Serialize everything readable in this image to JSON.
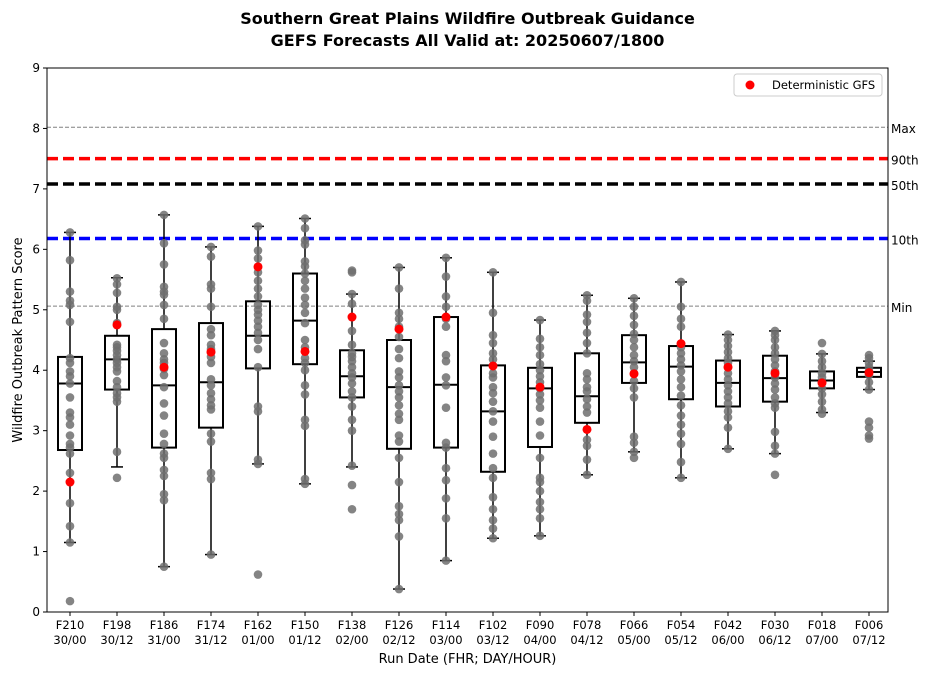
{
  "chart_data": {
    "type": "box",
    "title_lines": [
      "Southern Great Plains Wildfire Outbreak Guidance",
      "GEFS Forecasts All Valid at: 20250607/1800"
    ],
    "xlabel": "Run Date (FHR; DAY/HOUR)",
    "ylabel": "Wildfire Outbreak Pattern Score",
    "ylim": [
      0,
      9
    ],
    "yticks": [
      "0",
      "1",
      "2",
      "3",
      "4",
      "5",
      "6",
      "7",
      "8",
      "9"
    ],
    "legend": {
      "entries": [
        "Deterministic GFS"
      ],
      "placement": "top-right"
    },
    "grid": false,
    "reference_lines": [
      {
        "label": "Max",
        "value": 8.02,
        "color": "#808080",
        "style": "dashed-thin"
      },
      {
        "label": "90th",
        "value": 7.5,
        "color": "#ff0000",
        "style": "dashed-thick"
      },
      {
        "label": "50th",
        "value": 7.08,
        "color": "#000000",
        "style": "dashed-thick"
      },
      {
        "label": "10th",
        "value": 6.18,
        "color": "#0000ff",
        "style": "dashed-thick"
      },
      {
        "label": "Min",
        "value": 5.06,
        "color": "#808080",
        "style": "dashed-thin"
      }
    ],
    "categories": [
      {
        "fhr": "F210",
        "time": "30/00",
        "min": 1.15,
        "q1": 2.68,
        "median": 3.78,
        "q3": 4.22,
        "max": 6.28,
        "det": 2.15,
        "members": [
          0.18,
          1.15,
          1.42,
          1.8,
          2.3,
          2.62,
          2.72,
          2.78,
          2.92,
          3.1,
          3.22,
          3.3,
          3.55,
          3.78,
          3.9,
          3.98,
          4.12,
          4.2,
          4.8,
          5.08,
          5.15,
          5.3,
          5.82,
          6.28
        ]
      },
      {
        "fhr": "F198",
        "time": "30/12",
        "min": 2.4,
        "q1": 3.68,
        "median": 4.18,
        "q3": 4.57,
        "max": 5.53,
        "det": 4.75,
        "members": [
          2.22,
          2.65,
          3.48,
          3.55,
          3.62,
          3.72,
          3.82,
          3.98,
          4.05,
          4.12,
          4.18,
          4.25,
          4.32,
          4.38,
          4.42,
          4.78,
          5.0,
          5.05,
          5.28,
          5.42,
          5.52
        ]
      },
      {
        "fhr": "F186",
        "time": "31/00",
        "min": 0.75,
        "q1": 2.72,
        "median": 3.75,
        "q3": 4.68,
        "max": 6.57,
        "det": 4.05,
        "members": [
          0.75,
          1.85,
          1.95,
          2.25,
          2.35,
          2.55,
          2.62,
          2.78,
          2.95,
          3.25,
          3.45,
          3.72,
          3.92,
          4.02,
          4.12,
          4.18,
          4.28,
          4.45,
          4.85,
          5.08,
          5.25,
          5.3,
          5.38,
          5.75,
          6.1,
          6.57
        ]
      },
      {
        "fhr": "F174",
        "time": "31/12",
        "min": 0.95,
        "q1": 3.05,
        "median": 3.8,
        "q3": 4.78,
        "max": 6.04,
        "det": 4.3,
        "members": [
          0.95,
          2.2,
          2.3,
          2.82,
          2.95,
          3.35,
          3.42,
          3.52,
          3.62,
          3.75,
          3.85,
          4.12,
          4.22,
          4.35,
          4.42,
          4.58,
          4.68,
          5.05,
          5.35,
          5.42,
          5.88,
          6.04
        ]
      },
      {
        "fhr": "F162",
        "time": "01/00",
        "min": 2.45,
        "q1": 4.03,
        "median": 4.57,
        "q3": 5.14,
        "max": 6.38,
        "det": 5.71,
        "members": [
          0.62,
          2.45,
          2.52,
          3.32,
          3.4,
          4.05,
          4.35,
          4.5,
          4.62,
          4.72,
          4.82,
          4.92,
          5.0,
          5.08,
          5.22,
          5.35,
          5.48,
          5.62,
          5.85,
          5.98,
          6.38
        ]
      },
      {
        "fhr": "F150",
        "time": "01/12",
        "min": 2.12,
        "q1": 4.1,
        "median": 4.82,
        "q3": 5.6,
        "max": 6.51,
        "det": 4.31,
        "members": [
          2.12,
          2.2,
          3.08,
          3.18,
          3.6,
          3.75,
          4.0,
          4.12,
          4.2,
          4.38,
          4.5,
          4.78,
          4.95,
          5.08,
          5.2,
          5.35,
          5.48,
          5.6,
          5.72,
          5.8,
          6.08,
          6.15,
          6.35,
          6.51
        ]
      },
      {
        "fhr": "F138",
        "time": "02/00",
        "min": 2.4,
        "q1": 3.55,
        "median": 3.9,
        "q3": 4.33,
        "max": 5.26,
        "det": 4.88,
        "members": [
          1.7,
          2.1,
          2.42,
          3.0,
          3.18,
          3.4,
          3.55,
          3.65,
          3.78,
          3.88,
          3.95,
          4.05,
          4.15,
          4.22,
          4.28,
          4.42,
          4.65,
          5.1,
          5.26,
          5.62,
          5.65
        ]
      },
      {
        "fhr": "F126",
        "time": "02/12",
        "min": 0.38,
        "q1": 2.7,
        "median": 3.72,
        "q3": 4.5,
        "max": 5.7,
        "det": 4.68,
        "members": [
          0.38,
          1.25,
          1.52,
          1.62,
          1.75,
          2.15,
          2.55,
          2.82,
          2.92,
          3.18,
          3.28,
          3.42,
          3.55,
          3.65,
          3.75,
          3.88,
          3.98,
          4.2,
          4.35,
          4.55,
          4.72,
          4.85,
          4.95,
          5.35,
          5.7
        ]
      },
      {
        "fhr": "F114",
        "time": "03/00",
        "min": 0.85,
        "q1": 2.72,
        "median": 3.76,
        "q3": 4.88,
        "max": 5.86,
        "det": 4.88,
        "members": [
          0.85,
          1.55,
          1.88,
          2.18,
          2.38,
          2.72,
          2.8,
          3.38,
          3.75,
          3.88,
          4.15,
          4.25,
          4.72,
          4.85,
          5.05,
          5.22,
          5.55,
          5.86
        ]
      },
      {
        "fhr": "F102",
        "time": "03/12",
        "min": 1.22,
        "q1": 2.32,
        "median": 3.32,
        "q3": 4.08,
        "max": 5.62,
        "det": 4.07,
        "members": [
          1.22,
          1.38,
          1.52,
          1.7,
          1.9,
          2.22,
          2.38,
          2.62,
          2.9,
          3.15,
          3.32,
          3.48,
          3.62,
          3.72,
          3.88,
          3.95,
          4.18,
          4.28,
          4.45,
          4.58,
          4.95,
          5.62
        ]
      },
      {
        "fhr": "F090",
        "time": "04/00",
        "min": 1.26,
        "q1": 2.73,
        "median": 3.7,
        "q3": 4.04,
        "max": 4.83,
        "det": 3.72,
        "members": [
          1.26,
          1.55,
          1.7,
          1.82,
          2.0,
          2.15,
          2.22,
          2.55,
          2.92,
          3.15,
          3.38,
          3.5,
          3.6,
          3.7,
          3.8,
          3.9,
          4.0,
          4.1,
          4.25,
          4.38,
          4.52,
          4.83
        ]
      },
      {
        "fhr": "F078",
        "time": "04/12",
        "min": 2.27,
        "q1": 3.13,
        "median": 3.57,
        "q3": 4.28,
        "max": 5.24,
        "det": 3.02,
        "members": [
          2.27,
          2.52,
          2.75,
          2.85,
          3.3,
          3.4,
          3.52,
          3.65,
          3.72,
          3.85,
          3.95,
          4.28,
          4.45,
          4.62,
          4.8,
          4.92,
          5.15,
          5.24
        ]
      },
      {
        "fhr": "F066",
        "time": "05/00",
        "min": 2.65,
        "q1": 3.79,
        "median": 4.13,
        "q3": 4.58,
        "max": 5.19,
        "det": 3.94,
        "members": [
          2.55,
          2.65,
          2.8,
          2.9,
          3.55,
          3.7,
          3.82,
          3.95,
          4.05,
          4.15,
          4.25,
          4.38,
          4.5,
          4.6,
          4.75,
          4.9,
          5.05,
          5.19
        ]
      },
      {
        "fhr": "F054",
        "time": "05/12",
        "min": 2.22,
        "q1": 3.52,
        "median": 4.06,
        "q3": 4.4,
        "max": 5.46,
        "det": 4.44,
        "members": [
          2.22,
          2.48,
          2.78,
          2.95,
          3.1,
          3.25,
          3.42,
          3.58,
          3.72,
          3.85,
          3.98,
          4.08,
          4.18,
          4.28,
          4.38,
          4.72,
          4.85,
          5.05,
          5.46
        ]
      },
      {
        "fhr": "F042",
        "time": "06/00",
        "min": 2.7,
        "q1": 3.4,
        "median": 3.79,
        "q3": 4.16,
        "max": 4.59,
        "det": 4.05,
        "members": [
          2.7,
          3.05,
          3.22,
          3.32,
          3.45,
          3.55,
          3.65,
          3.75,
          3.85,
          3.95,
          4.05,
          4.12,
          4.2,
          4.3,
          4.4,
          4.5,
          4.59
        ]
      },
      {
        "fhr": "F030",
        "time": "06/12",
        "min": 2.62,
        "q1": 3.48,
        "median": 3.87,
        "q3": 4.24,
        "max": 4.65,
        "det": 3.95,
        "members": [
          2.27,
          2.62,
          2.75,
          2.98,
          3.38,
          3.45,
          3.55,
          3.68,
          3.78,
          3.88,
          3.98,
          4.08,
          4.18,
          4.28,
          4.38,
          4.5,
          4.58,
          4.65
        ]
      },
      {
        "fhr": "F018",
        "time": "07/00",
        "min": 3.3,
        "q1": 3.7,
        "median": 3.83,
        "q3": 3.98,
        "max": 4.27,
        "det": 3.79,
        "members": [
          3.28,
          3.35,
          3.48,
          3.6,
          3.7,
          3.8,
          3.88,
          3.95,
          4.05,
          4.15,
          4.27,
          4.45
        ]
      },
      {
        "fhr": "F006",
        "time": "07/12",
        "min": 3.68,
        "q1": 3.89,
        "median": 3.97,
        "q3": 4.04,
        "max": 4.15,
        "det": 3.96,
        "members": [
          2.87,
          2.92,
          3.05,
          3.15,
          3.68,
          3.8,
          3.92,
          3.98,
          4.05,
          4.12,
          4.2,
          4.25
        ]
      }
    ]
  },
  "colors": {
    "member": "#6e6e6e",
    "deterministic": "#ff0000",
    "box": "#000000"
  }
}
